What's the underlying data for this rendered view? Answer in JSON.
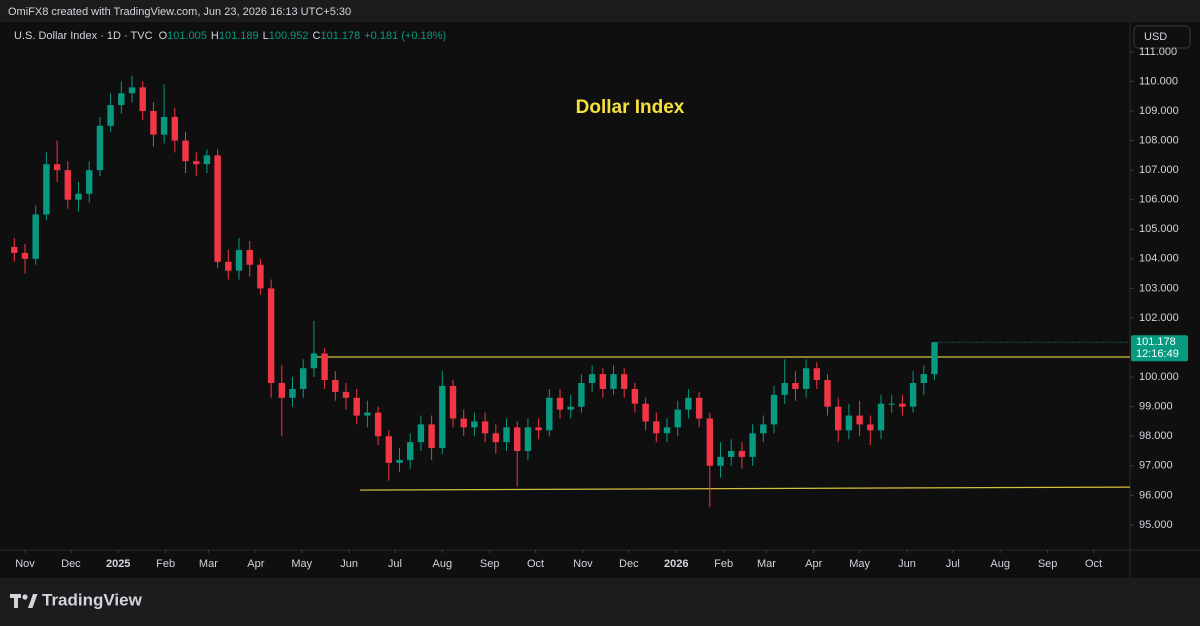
{
  "header": {
    "attribution": "OmiFX8 created with TradingView.com, Jun 23, 2026 16:13 UTC+5:30",
    "symbol": "U.S. Dollar Index · 1D · TVC",
    "ohlc": [
      {
        "label": "O",
        "value": "101.005"
      },
      {
        "label": "H",
        "value": "101.189"
      },
      {
        "label": "L",
        "value": "100.952"
      },
      {
        "label": "C",
        "value": "101.178"
      }
    ],
    "change": "+0.181 (+0.18%)",
    "currency": "USD"
  },
  "footer": {
    "brand": "TradingView"
  },
  "chart_data": {
    "type": "candlestick",
    "title": "Dollar Index",
    "up_color": "#089981",
    "down_color": "#f23645",
    "grid": false,
    "x": [
      -1,
      0,
      1,
      2,
      3,
      4,
      5,
      6,
      7,
      8,
      9,
      10,
      11,
      12,
      13,
      14,
      15,
      16,
      17,
      18,
      19,
      20,
      21,
      22,
      23,
      24,
      25,
      26,
      27,
      28,
      29,
      30,
      31,
      32,
      33,
      34,
      35,
      36,
      37,
      38,
      39,
      40,
      41,
      42,
      43,
      44,
      45,
      46,
      47,
      48,
      49,
      50,
      51,
      52,
      53,
      54,
      55,
      56,
      57,
      58,
      59,
      60,
      61,
      62,
      63,
      64,
      65,
      66,
      67,
      68,
      69,
      70,
      71,
      72,
      73,
      74,
      75,
      76,
      77,
      78,
      79,
      80,
      81,
      82,
      83,
      84,
      85
    ],
    "open": [
      104.4,
      104.2,
      104.0,
      105.5,
      107.2,
      107.0,
      106.0,
      106.2,
      107.0,
      108.5,
      109.2,
      109.6,
      109.8,
      109.0,
      108.2,
      108.8,
      108.0,
      107.3,
      107.2,
      107.5,
      103.9,
      103.6,
      104.3,
      103.8,
      103.0,
      99.8,
      99.3,
      99.6,
      100.3,
      100.8,
      99.9,
      99.5,
      99.3,
      98.7,
      98.8,
      98.0,
      97.1,
      97.2,
      97.8,
      98.4,
      97.6,
      99.7,
      98.6,
      98.3,
      98.5,
      98.1,
      97.8,
      98.3,
      97.5,
      98.3,
      98.2,
      99.3,
      98.9,
      99.0,
      99.8,
      100.1,
      99.6,
      100.1,
      99.6,
      99.1,
      98.5,
      98.1,
      98.3,
      98.9,
      99.3,
      98.6,
      97.0,
      97.3,
      97.5,
      97.3,
      98.1,
      98.4,
      99.4,
      99.8,
      99.6,
      100.3,
      99.9,
      99.0,
      98.2,
      98.7,
      98.4,
      98.2,
      99.1,
      99.1,
      99.0,
      99.8,
      100.1
    ],
    "high": [
      104.7,
      104.5,
      105.8,
      107.6,
      108.0,
      107.3,
      106.6,
      107.3,
      108.8,
      109.6,
      110.0,
      110.2,
      110.0,
      109.3,
      109.9,
      109.1,
      108.3,
      107.6,
      107.7,
      107.7,
      104.3,
      104.7,
      104.6,
      104.0,
      103.3,
      100.4,
      100.0,
      100.6,
      101.9,
      101.0,
      100.2,
      99.8,
      99.6,
      99.2,
      99.0,
      98.2,
      97.6,
      98.1,
      98.7,
      98.7,
      100.2,
      99.9,
      98.9,
      98.8,
      98.8,
      98.4,
      98.6,
      98.5,
      98.6,
      98.6,
      99.6,
      99.6,
      99.4,
      100.1,
      100.4,
      100.3,
      100.4,
      100.3,
      99.8,
      99.3,
      98.8,
      98.6,
      99.2,
      99.6,
      99.5,
      98.8,
      97.8,
      97.9,
      97.8,
      98.4,
      98.7,
      99.7,
      100.6,
      100.2,
      100.6,
      100.5,
      100.1,
      99.3,
      99.1,
      99.2,
      98.7,
      99.4,
      99.4,
      99.4,
      100.2,
      100.4,
      101.189
    ],
    "low": [
      103.9,
      103.5,
      103.8,
      105.3,
      106.6,
      105.7,
      105.6,
      105.9,
      106.8,
      108.3,
      108.9,
      109.3,
      108.7,
      107.8,
      107.9,
      107.6,
      106.9,
      106.8,
      106.9,
      103.7,
      103.3,
      103.3,
      103.4,
      102.8,
      99.3,
      98.0,
      99.0,
      99.3,
      100.0,
      99.6,
      99.2,
      98.9,
      98.4,
      98.3,
      97.7,
      96.5,
      96.8,
      96.9,
      97.5,
      97.2,
      97.4,
      98.3,
      98.0,
      98.0,
      97.8,
      97.4,
      97.5,
      96.3,
      97.2,
      97.9,
      98.0,
      98.6,
      98.6,
      98.8,
      99.5,
      99.3,
      99.4,
      99.3,
      98.8,
      98.2,
      97.8,
      97.8,
      98.0,
      98.6,
      98.3,
      95.6,
      96.6,
      97.0,
      96.9,
      97.0,
      97.8,
      98.1,
      99.1,
      99.2,
      99.3,
      99.6,
      98.7,
      97.8,
      97.9,
      98.0,
      97.7,
      97.9,
      98.8,
      98.7,
      98.8,
      99.4,
      99.9
    ],
    "close": [
      104.2,
      104.0,
      105.5,
      107.2,
      107.0,
      106.0,
      106.2,
      107.0,
      108.5,
      109.2,
      109.6,
      109.8,
      109.0,
      108.2,
      108.8,
      108.0,
      107.3,
      107.2,
      107.5,
      103.9,
      103.6,
      104.3,
      103.8,
      103.0,
      99.8,
      99.3,
      99.6,
      100.3,
      100.8,
      99.9,
      99.5,
      99.3,
      98.7,
      98.8,
      98.0,
      97.1,
      97.2,
      97.8,
      98.4,
      97.6,
      99.7,
      98.6,
      98.3,
      98.5,
      98.1,
      97.8,
      98.3,
      97.5,
      98.3,
      98.2,
      99.3,
      98.9,
      99.0,
      99.8,
      100.1,
      99.6,
      100.1,
      99.6,
      99.1,
      98.5,
      98.1,
      98.3,
      98.9,
      99.3,
      98.6,
      97.0,
      97.3,
      97.5,
      97.3,
      98.1,
      98.4,
      99.4,
      99.8,
      99.6,
      100.3,
      99.9,
      99.0,
      98.2,
      98.7,
      98.4,
      98.2,
      99.1,
      99.1,
      99.0,
      99.8,
      100.1,
      101.178
    ],
    "levels": [
      {
        "color": "#d4c23c",
        "x": [
          26.82,
          103.27
        ],
        "y": [
          100.68,
          100.68
        ]
      },
      {
        "color": "#d4c23c",
        "x": [
          31.31,
          103.27
        ],
        "y": [
          96.18,
          96.28
        ]
      }
    ],
    "last_price": {
      "value": 101.178,
      "countdown": "12:16:49"
    },
    "xlim": [
      -1.59,
      103.27
    ],
    "ylim": [
      94.22,
      112.01
    ],
    "xticks": [
      {
        "value": 0,
        "label": "Nov"
      },
      {
        "value": 4.29,
        "label": "Dec"
      },
      {
        "value": 8.71,
        "label": "2025"
      },
      {
        "value": 13.14,
        "label": "Feb"
      },
      {
        "value": 17.14,
        "label": "Mar"
      },
      {
        "value": 21.57,
        "label": "Apr"
      },
      {
        "value": 25.86,
        "label": "May"
      },
      {
        "value": 30.29,
        "label": "Jun"
      },
      {
        "value": 34.57,
        "label": "Jul"
      },
      {
        "value": 39,
        "label": "Aug"
      },
      {
        "value": 43.43,
        "label": "Sep"
      },
      {
        "value": 47.71,
        "label": "Oct"
      },
      {
        "value": 52.14,
        "label": "Nov"
      },
      {
        "value": 56.43,
        "label": "Dec"
      },
      {
        "value": 60.86,
        "label": "2026"
      },
      {
        "value": 65.29,
        "label": "Feb"
      },
      {
        "value": 69.29,
        "label": "Mar"
      },
      {
        "value": 73.71,
        "label": "Apr"
      },
      {
        "value": 78,
        "label": "May"
      },
      {
        "value": 82.43,
        "label": "Jun"
      },
      {
        "value": 86.71,
        "label": "Jul"
      },
      {
        "value": 91.14,
        "label": "Aug"
      },
      {
        "value": 95.57,
        "label": "Sep"
      },
      {
        "value": 99.86,
        "label": "Oct"
      }
    ],
    "yticks": [
      {
        "value": 95,
        "label": "95.000"
      },
      {
        "value": 96,
        "label": "96.000"
      },
      {
        "value": 97,
        "label": "97.000"
      },
      {
        "value": 98,
        "label": "98.000"
      },
      {
        "value": 99,
        "label": "99.000"
      },
      {
        "value": 100,
        "label": "100.000"
      },
      {
        "value": 101,
        "label": "101.000"
      },
      {
        "value": 102,
        "label": "102.000"
      },
      {
        "value": 103,
        "label": "103.000"
      },
      {
        "value": 104,
        "label": "104.000"
      },
      {
        "value": 105,
        "label": "105.000"
      },
      {
        "value": 106,
        "label": "106.000"
      },
      {
        "value": 107,
        "label": "107.000"
      },
      {
        "value": 108,
        "label": "108.000"
      },
      {
        "value": 109,
        "label": "109.000"
      },
      {
        "value": 110,
        "label": "110.000"
      },
      {
        "value": 111,
        "label": "111.000"
      }
    ]
  }
}
